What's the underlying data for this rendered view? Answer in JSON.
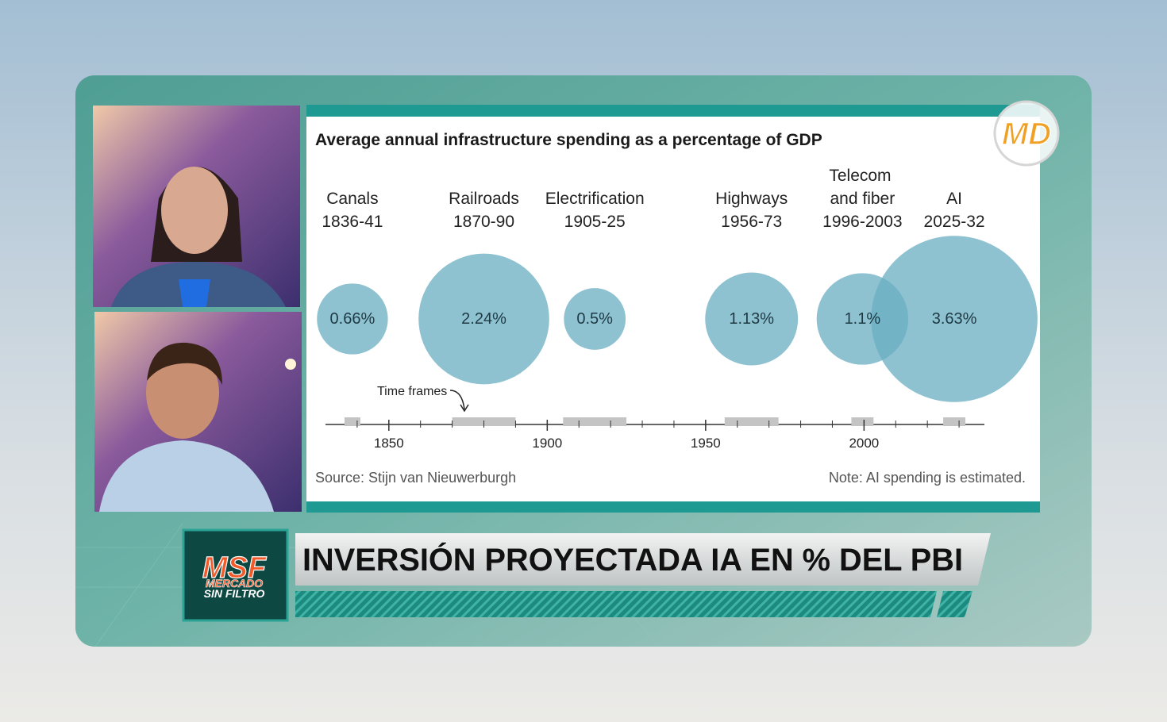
{
  "chart_data": {
    "type": "bubble",
    "title": "Average annual infrastructure spending as a percentage of GDP",
    "categories": [
      "Canals",
      "Railroads",
      "Electrification",
      "Highways",
      "Telecom and fiber",
      "AI"
    ],
    "periods": [
      "1836-41",
      "1870-90",
      "1905-25",
      "1956-73",
      "1996-2003",
      "2025-32"
    ],
    "spans": [
      [
        1836,
        1841
      ],
      [
        1870,
        1890
      ],
      [
        1905,
        1925
      ],
      [
        1956,
        1973
      ],
      [
        1996,
        2003
      ],
      [
        2025,
        2032
      ]
    ],
    "values": [
      0.66,
      2.24,
      0.5,
      1.13,
      1.1,
      3.63
    ],
    "value_labels": [
      "0.66%",
      "2.24%",
      "0.5%",
      "1.13%",
      "1.1%",
      "3.63%"
    ],
    "color": "#6aaec2",
    "span_color": "#c4c4c4",
    "xlim": [
      1830,
      2038
    ],
    "xticks": [
      1850,
      1900,
      1950,
      2000
    ],
    "xminorticks": [
      1840,
      1860,
      1870,
      1880,
      1890,
      1910,
      1920,
      1930,
      1940,
      1960,
      1970,
      1980,
      1990,
      2010,
      2020,
      2030
    ],
    "annotation": "Time frames",
    "source": "Source: Stijn van Nieuwerburgh",
    "note": "Note: AI spending is estimated."
  },
  "banner": {
    "headline": "INVERSIÓN PROYECTADA IA EN % DEL PBI",
    "logo": "MSF",
    "logo_line1": "MERCADO",
    "logo_line2": "SIN FILTRO"
  },
  "watermark": "MD"
}
